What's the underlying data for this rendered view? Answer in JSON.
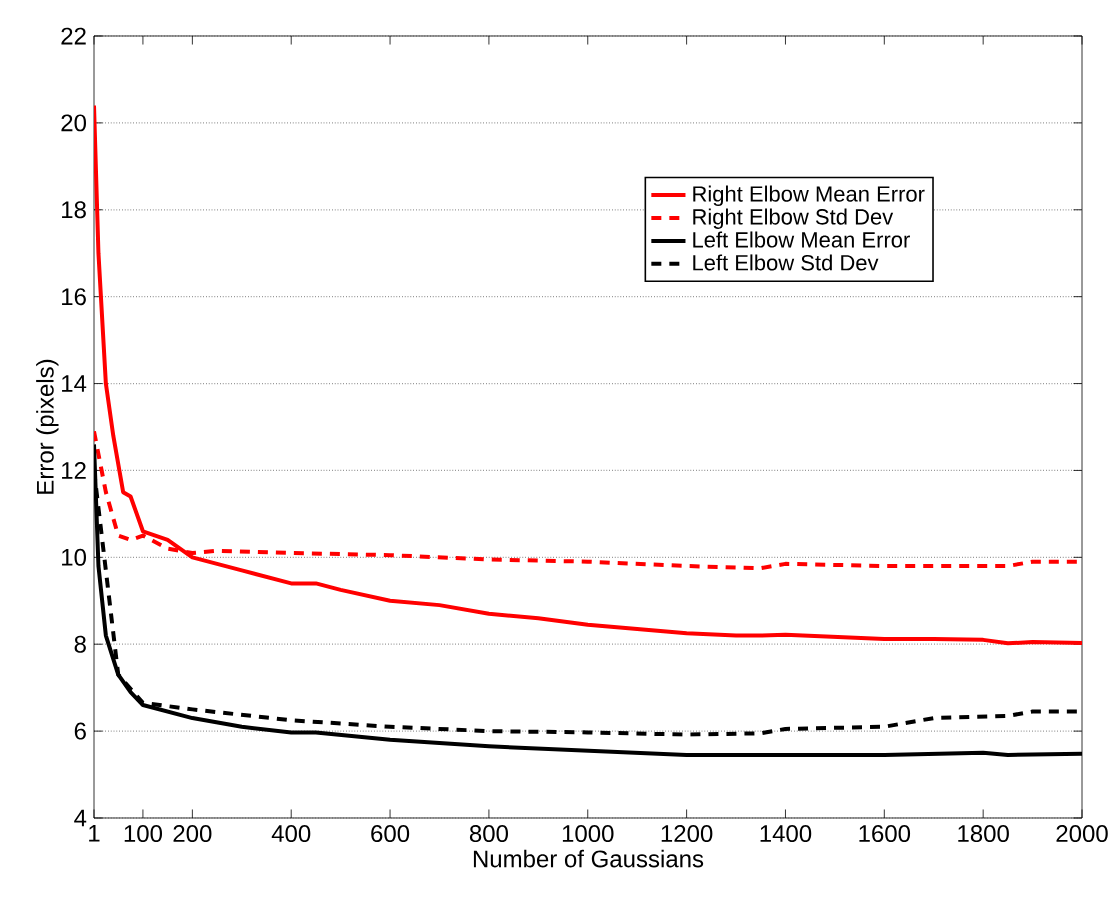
{
  "chart_data": {
    "type": "line",
    "xlabel": "Number of Gaussians",
    "ylabel": "Error (pixels)",
    "xlim": [
      1,
      2000
    ],
    "ylim": [
      4,
      22
    ],
    "xticks": [
      1,
      100,
      200,
      400,
      600,
      800,
      1000,
      1200,
      1400,
      1600,
      1800,
      2000
    ],
    "yticks": [
      4,
      6,
      8,
      10,
      12,
      14,
      16,
      18,
      20,
      22
    ],
    "grid": "y",
    "legend": "top right",
    "series": [
      {
        "name": "Right Elbow Mean Error",
        "color": "#ff0000",
        "line_style": "solid",
        "x": [
          1,
          10,
          25,
          40,
          60,
          75,
          100,
          150,
          200,
          300,
          400,
          450,
          500,
          600,
          700,
          800,
          900,
          1000,
          1100,
          1200,
          1300,
          1350,
          1400,
          1500,
          1600,
          1700,
          1800,
          1850,
          1900,
          2000
        ],
        "values": [
          20.4,
          17,
          14,
          12.8,
          11.5,
          11.4,
          10.6,
          10.4,
          10.0,
          9.7,
          9.4,
          9.4,
          9.25,
          9.0,
          8.9,
          8.7,
          8.6,
          8.45,
          8.35,
          8.25,
          8.2,
          8.2,
          8.22,
          8.17,
          8.12,
          8.12,
          8.1,
          8.02,
          8.05,
          8.03
        ]
      },
      {
        "name": "Right Elbow Std Dev",
        "color": "#ff0000",
        "line_style": "dashed",
        "x": [
          1,
          25,
          50,
          75,
          100,
          150,
          200,
          250,
          400,
          600,
          800,
          1000,
          1200,
          1350,
          1400,
          1600,
          1850,
          1900,
          2000
        ],
        "values": [
          12.9,
          11.5,
          10.5,
          10.4,
          10.5,
          10.2,
          10.1,
          10.15,
          10.1,
          10.05,
          9.95,
          9.9,
          9.8,
          9.75,
          9.85,
          9.8,
          9.8,
          9.9,
          9.9
        ]
      },
      {
        "name": "Left Elbow Mean Error",
        "color": "#000000",
        "line_style": "solid",
        "x": [
          1,
          10,
          25,
          50,
          75,
          100,
          200,
          300,
          400,
          450,
          600,
          800,
          1000,
          1200,
          1400,
          1600,
          1800,
          1850,
          2000
        ],
        "values": [
          12.6,
          9.8,
          8.2,
          7.3,
          6.9,
          6.6,
          6.3,
          6.1,
          5.97,
          5.97,
          5.8,
          5.65,
          5.55,
          5.45,
          5.45,
          5.45,
          5.5,
          5.45,
          5.48
        ]
      },
      {
        "name": "Left Elbow Std Dev",
        "color": "#000000",
        "line_style": "dashed",
        "x": [
          1,
          50,
          100,
          200,
          400,
          600,
          800,
          1000,
          1200,
          1350,
          1400,
          1600,
          1700,
          1850,
          1900,
          2000
        ],
        "values": [
          12.0,
          7.3,
          6.65,
          6.5,
          6.25,
          6.1,
          6.0,
          5.97,
          5.92,
          5.95,
          6.05,
          6.1,
          6.3,
          6.35,
          6.45,
          6.45
        ]
      }
    ]
  }
}
